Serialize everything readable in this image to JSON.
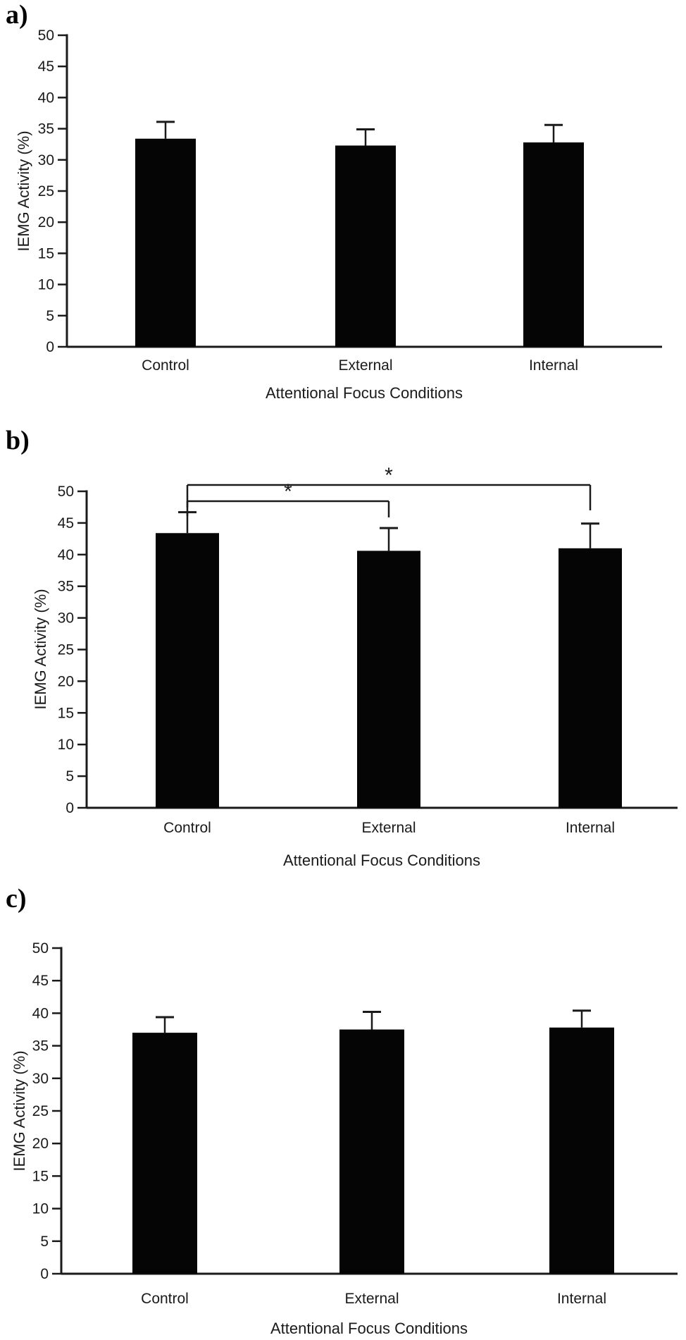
{
  "figure": {
    "background": "#ffffff",
    "bar_color": "#050505",
    "axis_color": "#1a1a1a",
    "text_color": "#1a1a1a"
  },
  "chart_data": [
    {
      "type": "bar",
      "panel_label": "a)",
      "title": "",
      "xlabel": "Attentional Focus Conditions",
      "ylabel": "IEMG Activity (%)",
      "categories": [
        "Control",
        "External",
        "Internal"
      ],
      "values": [
        33.4,
        32.3,
        32.8
      ],
      "error_up": [
        2.7,
        2.6,
        2.8
      ],
      "ylim": [
        0,
        50
      ],
      "ytick_step": 5,
      "grid": false,
      "legend": false,
      "significance_brackets": []
    },
    {
      "type": "bar",
      "panel_label": "b)",
      "title": "",
      "xlabel": "Attentional Focus Conditions",
      "ylabel": "IEMG Activity (%)",
      "categories": [
        "Control",
        "External",
        "Internal"
      ],
      "values": [
        43.4,
        40.6,
        41.0
      ],
      "error_up": [
        3.3,
        3.6,
        3.9
      ],
      "ylim": [
        0,
        50
      ],
      "ytick_step": 5,
      "grid": false,
      "legend": false,
      "significance_brackets": [
        {
          "from": "Control",
          "to": "External",
          "label": "*"
        },
        {
          "from": "Control",
          "to": "Internal",
          "label": "*"
        }
      ]
    },
    {
      "type": "bar",
      "panel_label": "c)",
      "title": "",
      "xlabel": "Attentional Focus Conditions",
      "ylabel": "IEMG Activity (%)",
      "categories": [
        "Control",
        "External",
        "Internal"
      ],
      "values": [
        37.0,
        37.5,
        37.8
      ],
      "error_up": [
        2.4,
        2.7,
        2.6
      ],
      "ylim": [
        0,
        50
      ],
      "ytick_step": 5,
      "grid": false,
      "legend": false,
      "significance_brackets": []
    }
  ]
}
